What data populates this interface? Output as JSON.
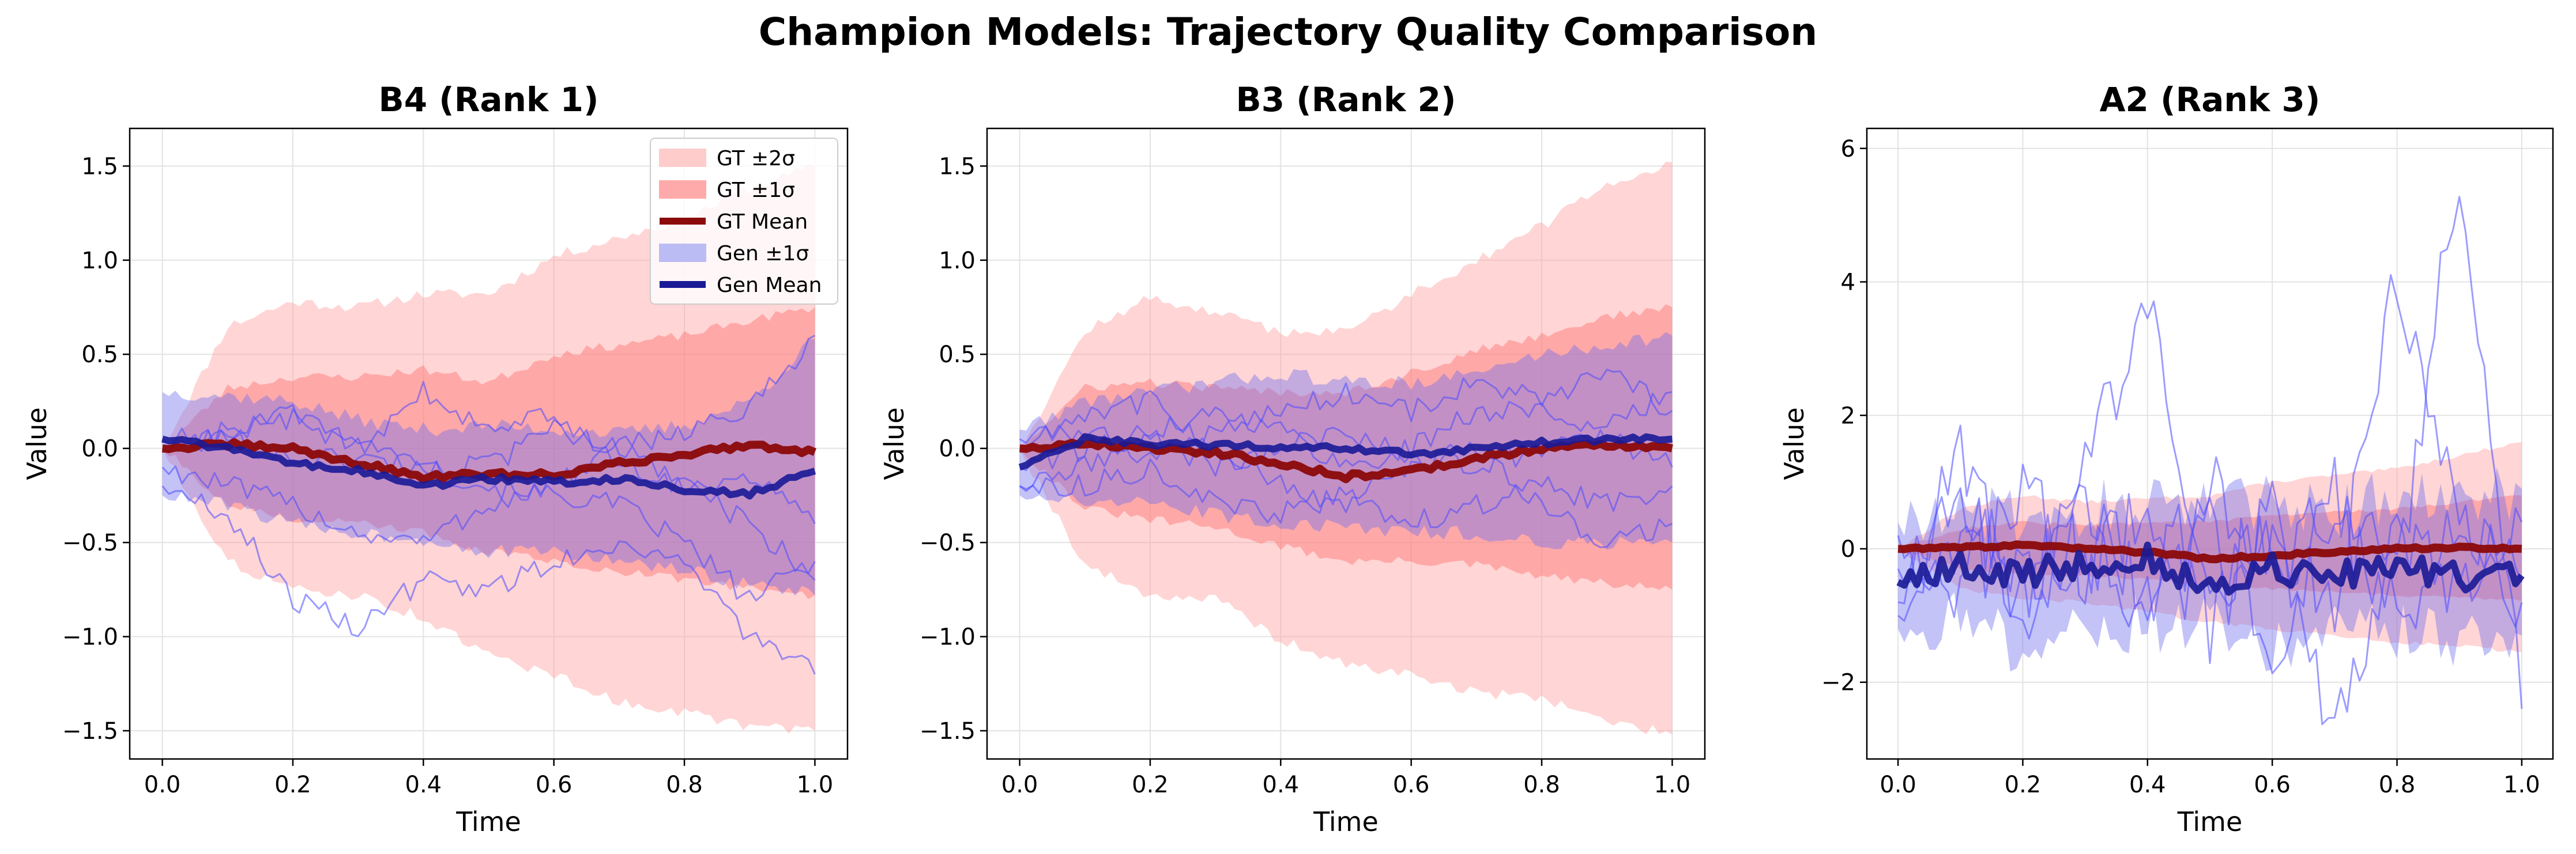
{
  "figure": {
    "title": "Champion Models: Trajectory Quality Comparison"
  },
  "colors": {
    "gt_band_2sigma": "#ff9a9a",
    "gt_band_1sigma": "#ff6b6b",
    "gt_mean": "#8b0a0a",
    "gen_band": "#7070ee",
    "gen_mean": "#1a1a96",
    "gen_sample": "#4a4aff",
    "grid": "#e3e3e3"
  },
  "legend": {
    "placement": "upper-right (first panel)",
    "items": [
      {
        "label": "GT ±2σ",
        "kind": "band",
        "color": "#ffcccc"
      },
      {
        "label": "GT ±1σ",
        "kind": "band",
        "color": "#ffaaaa"
      },
      {
        "label": "GT Mean",
        "kind": "line",
        "color": "#8b0a0a"
      },
      {
        "label": "Gen ±1σ",
        "kind": "band",
        "color": "#bcbcf4"
      },
      {
        "label": "Gen Mean",
        "kind": "line",
        "color": "#1a1a96"
      }
    ]
  },
  "chart_data": [
    {
      "type": "line",
      "title": "B4 (Rank 1)",
      "xlabel": "Time",
      "ylabel": "Value",
      "xlim": [
        -0.05,
        1.05
      ],
      "ylim": [
        -1.65,
        1.7
      ],
      "xticks": [
        "0.0",
        "0.2",
        "0.4",
        "0.6",
        "0.8",
        "1.0"
      ],
      "yticks": [
        "−1.5",
        "−1.0",
        "−0.5",
        "0.0",
        "0.5",
        "1.0",
        "1.5"
      ],
      "grid": true,
      "x": [
        0.0,
        0.1,
        0.2,
        0.3,
        0.4,
        0.5,
        0.6,
        0.7,
        0.8,
        0.9,
        1.0
      ],
      "gt_2sigma_upper": [
        0.0,
        0.65,
        0.78,
        0.75,
        0.82,
        0.82,
        1.02,
        1.12,
        1.22,
        1.38,
        1.5
      ],
      "gt_2sigma_lower": [
        0.0,
        -0.6,
        -0.75,
        -0.78,
        -0.9,
        -1.1,
        -1.2,
        -1.35,
        -1.4,
        -1.48,
        -1.5
      ],
      "gt_1sigma_upper": [
        0.0,
        0.32,
        0.38,
        0.38,
        0.42,
        0.35,
        0.5,
        0.55,
        0.6,
        0.68,
        0.75
      ],
      "gt_1sigma_lower": [
        0.0,
        -0.3,
        -0.38,
        -0.4,
        -0.45,
        -0.55,
        -0.6,
        -0.65,
        -0.7,
        -0.74,
        -0.78
      ],
      "gen_upper": [
        0.3,
        0.28,
        0.25,
        0.15,
        0.1,
        0.12,
        0.1,
        0.08,
        0.12,
        0.25,
        0.58
      ],
      "gen_lower": [
        -0.25,
        -0.3,
        -0.4,
        -0.45,
        -0.48,
        -0.55,
        -0.55,
        -0.6,
        -0.65,
        -0.72,
        -0.78
      ],
      "gt_mean": [
        0.0,
        0.02,
        0.0,
        -0.08,
        -0.15,
        -0.14,
        -0.14,
        -0.08,
        -0.03,
        0.02,
        -0.02
      ],
      "gen_mean": [
        0.05,
        0.0,
        -0.08,
        -0.12,
        -0.2,
        -0.16,
        -0.18,
        -0.16,
        -0.22,
        -0.24,
        -0.12
      ],
      "gen_samples": [
        [
          0.05,
          0.05,
          -0.05,
          -0.05,
          -0.1,
          -0.2,
          -0.25,
          -0.3,
          -0.5,
          -0.8,
          -0.6
        ],
        [
          -0.2,
          -0.35,
          -0.8,
          -0.95,
          -0.7,
          -0.75,
          -0.6,
          -0.5,
          -0.6,
          -1.0,
          -1.2
        ],
        [
          0.0,
          0.1,
          0.15,
          0.0,
          -0.1,
          -0.1,
          0.1,
          0.0,
          -0.2,
          -0.15,
          -0.4
        ],
        [
          -0.1,
          -0.2,
          -0.3,
          -0.45,
          -0.5,
          -0.3,
          -0.2,
          0.0,
          0.1,
          0.2,
          0.6
        ],
        [
          0.0,
          0.05,
          0.2,
          0.0,
          0.3,
          0.1,
          0.2,
          -0.1,
          -0.2,
          -0.4,
          -0.7
        ]
      ]
    },
    {
      "type": "line",
      "title": "B3 (Rank 2)",
      "xlabel": "Time",
      "ylabel": "Value",
      "xlim": [
        -0.05,
        1.05
      ],
      "ylim": [
        -1.65,
        1.7
      ],
      "xticks": [
        "0.0",
        "0.2",
        "0.4",
        "0.6",
        "0.8",
        "1.0"
      ],
      "yticks": [
        "−1.5",
        "−1.0",
        "−0.5",
        "0.0",
        "0.5",
        "1.0",
        "1.5"
      ],
      "grid": true,
      "x": [
        0.0,
        0.1,
        0.2,
        0.3,
        0.4,
        0.5,
        0.6,
        0.7,
        0.8,
        0.9,
        1.0
      ],
      "gt_2sigma_upper": [
        0.0,
        0.62,
        0.8,
        0.72,
        0.62,
        0.62,
        0.82,
        1.0,
        1.18,
        1.4,
        1.52
      ],
      "gt_2sigma_lower": [
        0.0,
        -0.62,
        -0.78,
        -0.8,
        -1.02,
        -1.15,
        -1.2,
        -1.3,
        -1.32,
        -1.45,
        -1.52
      ],
      "gt_1sigma_upper": [
        0.0,
        0.32,
        0.35,
        0.32,
        0.3,
        0.3,
        0.4,
        0.52,
        0.6,
        0.7,
        0.75
      ],
      "gt_1sigma_lower": [
        0.0,
        -0.32,
        -0.38,
        -0.42,
        -0.52,
        -0.6,
        -0.6,
        -0.62,
        -0.68,
        -0.72,
        -0.75
      ],
      "gen_upper": [
        0.1,
        0.25,
        0.3,
        0.35,
        0.4,
        0.35,
        0.35,
        0.4,
        0.5,
        0.55,
        0.6
      ],
      "gen_lower": [
        -0.25,
        -0.28,
        -0.3,
        -0.35,
        -0.4,
        -0.42,
        -0.45,
        -0.45,
        -0.5,
        -0.5,
        -0.5
      ],
      "gt_mean": [
        0.0,
        0.03,
        0.0,
        -0.02,
        -0.08,
        -0.15,
        -0.12,
        -0.05,
        0.0,
        0.02,
        0.0
      ],
      "gen_mean": [
        -0.1,
        0.05,
        0.02,
        0.02,
        0.0,
        0.0,
        -0.03,
        0.0,
        0.03,
        0.05,
        0.05
      ],
      "gen_samples": [
        [
          -0.2,
          -0.1,
          0.1,
          0.2,
          0.1,
          -0.1,
          0.0,
          0.2,
          0.2,
          0.1,
          0.3
        ],
        [
          0.0,
          0.2,
          0.25,
          0.0,
          -0.2,
          -0.3,
          -0.1,
          0.0,
          -0.3,
          -0.5,
          -0.4
        ],
        [
          -0.2,
          -0.2,
          -0.1,
          -0.3,
          -0.35,
          -0.25,
          -0.4,
          -0.3,
          -0.2,
          -0.3,
          -0.2
        ],
        [
          0.05,
          0.1,
          -0.05,
          0.1,
          0.2,
          0.3,
          0.2,
          0.35,
          0.25,
          0.4,
          0.2
        ],
        [
          -0.1,
          0.0,
          0.05,
          -0.1,
          0.0,
          0.1,
          -0.05,
          -0.1,
          0.0,
          0.05,
          -0.1
        ]
      ]
    },
    {
      "type": "line",
      "title": "A2 (Rank 3)",
      "xlabel": "Time",
      "ylabel": "Value",
      "xlim": [
        -0.05,
        1.05
      ],
      "ylim": [
        -3.15,
        6.3
      ],
      "xticks": [
        "0.0",
        "0.2",
        "0.4",
        "0.6",
        "0.8",
        "1.0"
      ],
      "yticks": [
        "−2",
        "0",
        "2",
        "4",
        "6"
      ],
      "grid": true,
      "x": [
        0.0,
        0.1,
        0.2,
        0.3,
        0.4,
        0.5,
        0.6,
        0.7,
        0.8,
        0.9,
        1.0
      ],
      "gt_2sigma_upper": [
        0.0,
        0.6,
        0.8,
        0.7,
        0.75,
        0.8,
        1.0,
        1.1,
        1.2,
        1.4,
        1.6
      ],
      "gt_2sigma_lower": [
        0.0,
        -0.6,
        -0.75,
        -0.8,
        -0.95,
        -1.1,
        -1.2,
        -1.3,
        -1.4,
        -1.45,
        -1.55
      ],
      "gt_1sigma_upper": [
        0.0,
        0.3,
        0.4,
        0.35,
        0.4,
        0.4,
        0.5,
        0.55,
        0.6,
        0.7,
        0.8
      ],
      "gt_1sigma_lower": [
        0.0,
        -0.3,
        -0.4,
        -0.4,
        -0.45,
        -0.55,
        -0.6,
        -0.65,
        -0.7,
        -0.72,
        -0.78
      ],
      "gen_upper": [
        0.4,
        0.6,
        0.5,
        0.6,
        0.8,
        0.6,
        0.7,
        0.5,
        0.8,
        0.6,
        0.9
      ],
      "gen_lower": [
        -1.2,
        -1.0,
        -1.5,
        -1.2,
        -1.1,
        -1.2,
        -1.5,
        -1.3,
        -1.2,
        -1.4,
        -1.3
      ],
      "gt_mean": [
        0.0,
        0.02,
        0.05,
        0.0,
        -0.05,
        -0.15,
        -0.1,
        -0.05,
        0.0,
        0.02,
        0.0
      ],
      "gen_mean": [
        -0.5,
        -0.3,
        -0.4,
        -0.2,
        -0.15,
        -0.6,
        -0.3,
        -0.4,
        -0.3,
        -0.45,
        -0.4
      ],
      "gen_samples": [
        [
          -0.3,
          0.2,
          -0.8,
          1.2,
          3.7,
          -0.5,
          0.3,
          -1.0,
          4.2,
          0.5,
          -0.8
        ],
        [
          -1.0,
          0.8,
          -0.5,
          0.0,
          -1.0,
          0.5,
          -1.5,
          0.8,
          -0.6,
          5.8,
          -2.4
        ],
        [
          0.2,
          -0.6,
          1.0,
          -0.3,
          0.5,
          -1.2,
          0.6,
          -2.7,
          0.2,
          -0.8,
          0.4
        ],
        [
          -0.8,
          1.6,
          -1.2,
          0.7,
          -0.7,
          0.9,
          -0.2,
          0.6,
          -1.0,
          0.3,
          -0.5
        ]
      ]
    }
  ]
}
